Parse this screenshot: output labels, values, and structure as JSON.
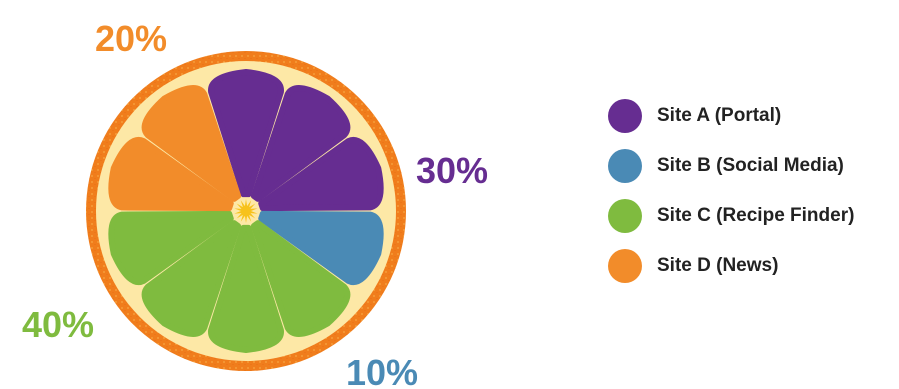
{
  "chart_data": {
    "type": "pie",
    "categories": [
      "Site A (Portal)",
      "Site B (Social Media)",
      "Site C (Recipe Finder)",
      "Site D (News)"
    ],
    "values": [
      30,
      10,
      40,
      20
    ],
    "value_labels": [
      "30%",
      "10%",
      "40%",
      "20%"
    ],
    "colors": [
      "#662d91",
      "#4a8ab5",
      "#7fbb3f",
      "#f28c2a"
    ],
    "segments_per_category": [
      3,
      1,
      4,
      2
    ],
    "legend_position": "right",
    "rind_color": "#f07d1c",
    "pith_color": "#fde8a6",
    "core_color": "#f7c21b"
  }
}
